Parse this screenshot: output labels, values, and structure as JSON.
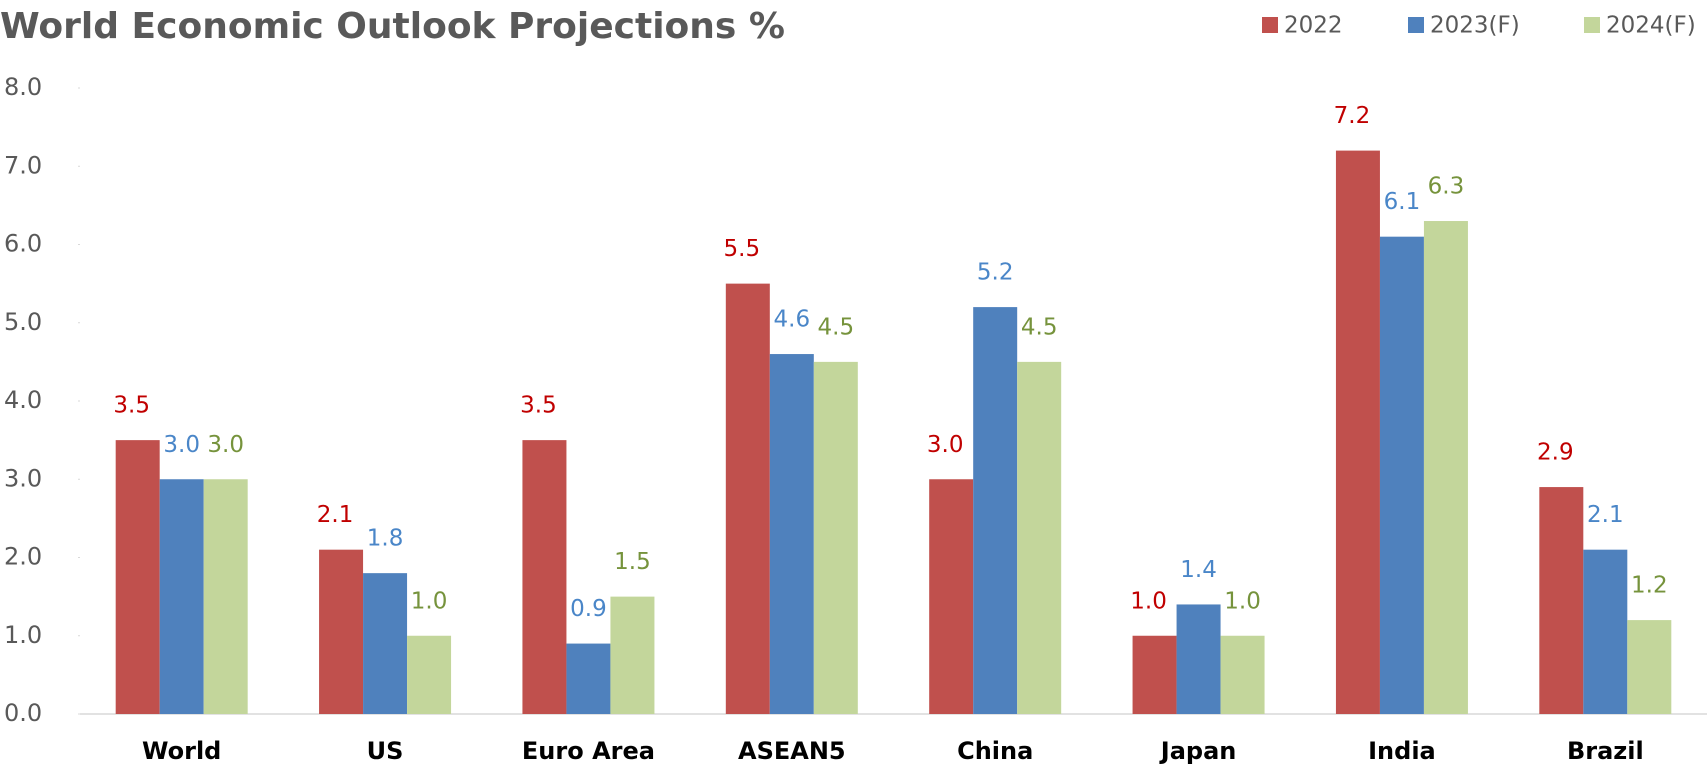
{
  "chart_data": {
    "type": "bar",
    "title": "World Economic Outlook Projections %",
    "categories": [
      "World",
      "US",
      "Euro Area",
      "ASEAN5",
      "China",
      "Japan",
      "India",
      "Brazil"
    ],
    "series": [
      {
        "name": "2022",
        "color": "#c0504d",
        "label_color": "#c00000",
        "values": [
          3.5,
          2.1,
          3.5,
          5.5,
          3.0,
          1.0,
          7.2,
          2.9
        ],
        "value_labels": [
          "3.5",
          "2.1",
          "3.5",
          "5.5",
          "3.0",
          "1.0",
          "7.2",
          "2.9"
        ]
      },
      {
        "name": "2023(F)",
        "color": "#4f81bd",
        "label_color": "#4a86c8",
        "values": [
          3.0,
          1.8,
          0.9,
          4.6,
          5.2,
          1.4,
          6.1,
          2.1
        ],
        "value_labels": [
          "3.0",
          "1.8",
          "0.9",
          "4.6",
          "5.2",
          "1.4",
          "6.1",
          "2.1"
        ]
      },
      {
        "name": "2024(F)",
        "color": "#c3d69b",
        "label_color": "#76933c",
        "values": [
          3.0,
          1.0,
          1.5,
          4.5,
          4.5,
          1.0,
          6.3,
          1.2
        ],
        "value_labels": [
          "3.0",
          "1.0",
          "1.5",
          "4.5",
          "4.5",
          "1.0",
          "6.3",
          "1.2"
        ]
      }
    ],
    "ylim": [
      0,
      8
    ],
    "yticks": [
      {
        "value": 0,
        "label": "0.0"
      },
      {
        "value": 1,
        "label": "1.0"
      },
      {
        "value": 2,
        "label": "2.0"
      },
      {
        "value": 3,
        "label": "3.0"
      },
      {
        "value": 4,
        "label": "4.0"
      },
      {
        "value": 5,
        "label": "5.0"
      },
      {
        "value": 6,
        "label": "6.0"
      },
      {
        "value": 7,
        "label": "7.0"
      },
      {
        "value": 8,
        "label": "8.0"
      }
    ],
    "legend": "top-right"
  }
}
